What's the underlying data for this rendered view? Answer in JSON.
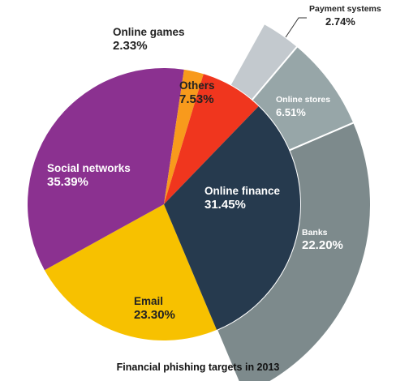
{
  "caption": "Financial phishing targets in 2013",
  "chart_data": {
    "type": "pie",
    "title": "Financial phishing targets in 2013",
    "slices": [
      {
        "label": "Online finance",
        "value": 31.45,
        "display": "31.45%",
        "color": "#263a4e"
      },
      {
        "label": "Email",
        "value": 23.3,
        "display": "23.30%",
        "color": "#f7c100"
      },
      {
        "label": "Social networks",
        "value": 35.39,
        "display": "35.39%",
        "color": "#8b3190"
      },
      {
        "label": "Online games",
        "value": 2.33,
        "display": "2.33%",
        "color": "#f89a1c"
      },
      {
        "label": "Others",
        "value": 7.53,
        "display": "7.53%",
        "color": "#f0361e"
      }
    ],
    "breakdown": {
      "of": "Online finance",
      "slices": [
        {
          "label": "Payment systems",
          "value": 2.74,
          "display": "2.74%",
          "color": "#c3c9ce"
        },
        {
          "label": "Online stores",
          "value": 6.51,
          "display": "6.51%",
          "color": "#97a6a8"
        },
        {
          "label": "Banks",
          "value": 22.2,
          "display": "22.20%",
          "color": "#7d8a8c"
        }
      ]
    }
  }
}
